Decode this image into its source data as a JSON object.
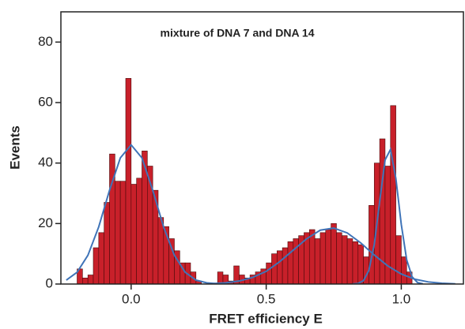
{
  "chart_data": {
    "type": "histogram",
    "title": "mixture of DNA 7 and DNA 14",
    "xlabel": "FRET efficiency E",
    "ylabel": "Events",
    "bins": [
      -0.2,
      -0.18,
      -0.16,
      -0.14,
      -0.12,
      -0.1,
      -0.08,
      -0.06,
      -0.04,
      -0.02,
      0,
      0.02,
      0.04,
      0.06,
      0.08,
      0.1,
      0.12,
      0.14,
      0.16,
      0.18,
      0.2,
      0.22,
      0.24,
      0.26,
      0.28,
      0.3,
      0.32,
      0.34,
      0.36,
      0.38,
      0.4,
      0.42,
      0.44,
      0.46,
      0.48,
      0.5,
      0.52,
      0.54,
      0.56,
      0.58,
      0.6,
      0.62,
      0.64,
      0.66,
      0.68,
      0.7,
      0.72,
      0.74,
      0.76,
      0.78,
      0.8,
      0.82,
      0.84,
      0.86,
      0.88,
      0.9,
      0.92,
      0.94,
      0.96,
      0.98,
      1.0,
      1.02,
      1.04
    ],
    "values": [
      5,
      2,
      3,
      12,
      17,
      27,
      43,
      34,
      34,
      68,
      33,
      35,
      44,
      39,
      31,
      22,
      19,
      15,
      11,
      7,
      7,
      4,
      1,
      0,
      0,
      0,
      4,
      3,
      1,
      6,
      3,
      2,
      3,
      4,
      5,
      7,
      10,
      11,
      12,
      14,
      15,
      16,
      17,
      18,
      15,
      17,
      18,
      20,
      17,
      16,
      15,
      14,
      13,
      9,
      26,
      40,
      48,
      39,
      59,
      16,
      9,
      4
    ],
    "color": "#c8202a",
    "edgecolor": "#4a0a0a",
    "fits": [
      {
        "color": "#3f74b8",
        "x": [
          -0.24,
          -0.2,
          -0.16,
          -0.12,
          -0.08,
          -0.04,
          0,
          0.04,
          0.08,
          0.12,
          0.16,
          0.2,
          0.24,
          0.28,
          0.32
        ],
        "values": [
          1.3,
          3.9,
          9.5,
          18.9,
          31,
          41.7,
          46,
          41.7,
          31,
          18.9,
          9.5,
          3.9,
          1.3,
          0.4,
          0.1
        ]
      },
      {
        "color": "#3f74b8",
        "x": [
          0.3,
          0.35,
          0.4,
          0.45,
          0.5,
          0.55,
          0.6,
          0.65,
          0.7,
          0.75,
          0.8,
          0.85,
          0.9,
          0.95,
          1.0,
          1.05,
          1.1,
          1.15,
          1.2
        ],
        "values": [
          0.13,
          0.4,
          1.0,
          2.2,
          4.2,
          7.4,
          11.2,
          15.0,
          17.8,
          18.5,
          16.9,
          13.6,
          9.6,
          6.0,
          3.3,
          1.6,
          0.7,
          0.25,
          0.08
        ]
      },
      {
        "color": "#3f74b8",
        "x": [
          0.82,
          0.84,
          0.86,
          0.88,
          0.9,
          0.92,
          0.94,
          0.96,
          0.98,
          1.0,
          1.02,
          1.04,
          1.06,
          1.08
        ],
        "values": [
          0.03,
          0.2,
          1.1,
          4.5,
          13.1,
          27.3,
          41,
          44.5,
          34.9,
          19.7,
          8.0,
          2.4,
          0.5,
          0.07
        ]
      }
    ],
    "xlim": [
      -0.26,
      1.23
    ],
    "ylim": [
      0,
      90
    ],
    "xticks": [
      {
        "value": 0,
        "label": "0.0"
      },
      0.5,
      {
        "value": 1,
        "label": "1.0"
      }
    ],
    "yticks": [
      0,
      20,
      40,
      60,
      80
    ]
  }
}
